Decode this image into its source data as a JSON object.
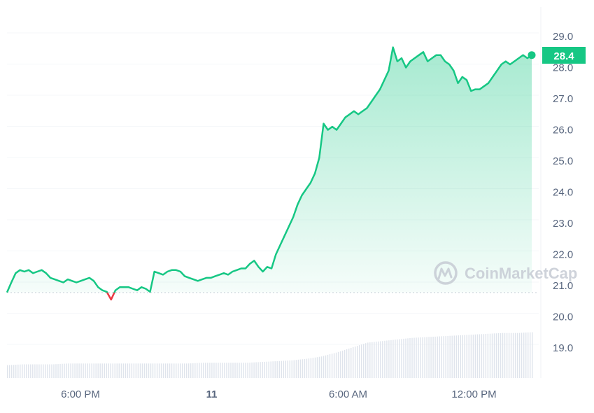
{
  "chart_data": {
    "type": "area",
    "title": "",
    "xlabel": "",
    "ylabel": "",
    "ylim": [
      18.2,
      29.4
    ],
    "y_ticks": [
      "29.0",
      "28.0",
      "27.0",
      "26.0",
      "25.0",
      "24.0",
      "23.0",
      "22.0",
      "21.0",
      "20.0",
      "19.0"
    ],
    "x_ticks": [
      {
        "label": "6:00 PM",
        "pos": 0.14,
        "bold": false
      },
      {
        "label": "11",
        "pos": 0.39,
        "bold": true
      },
      {
        "label": "6:00 AM",
        "pos": 0.65,
        "bold": false
      },
      {
        "label": "12:00 PM",
        "pos": 0.89,
        "bold": false
      }
    ],
    "baseline": 20.78,
    "current_price": "28.4",
    "series": [
      {
        "name": "Price",
        "values": [
          20.78,
          21.1,
          21.4,
          21.5,
          21.45,
          21.5,
          21.4,
          21.45,
          21.5,
          21.4,
          21.25,
          21.2,
          21.15,
          21.1,
          21.2,
          21.15,
          21.1,
          21.15,
          21.2,
          21.25,
          21.15,
          20.95,
          20.85,
          20.8,
          20.55,
          20.85,
          20.95,
          20.95,
          20.95,
          20.9,
          20.85,
          20.95,
          20.9,
          20.8,
          21.45,
          21.4,
          21.35,
          21.45,
          21.5,
          21.5,
          21.45,
          21.3,
          21.25,
          21.2,
          21.15,
          21.2,
          21.25,
          21.25,
          21.3,
          21.35,
          21.4,
          21.35,
          21.45,
          21.5,
          21.55,
          21.55,
          21.7,
          21.8,
          21.6,
          21.45,
          21.6,
          21.55,
          22.0,
          22.3,
          22.6,
          22.9,
          23.2,
          23.6,
          23.9,
          24.1,
          24.3,
          24.6,
          25.1,
          26.2,
          26.0,
          26.1,
          26.0,
          26.2,
          26.4,
          26.5,
          26.6,
          26.5,
          26.6,
          26.7,
          26.9,
          27.1,
          27.3,
          27.6,
          27.9,
          28.65,
          28.2,
          28.3,
          28.0,
          28.2,
          28.3,
          28.4,
          28.5,
          28.2,
          28.3,
          28.4,
          28.4,
          28.2,
          28.1,
          27.9,
          27.5,
          27.7,
          27.6,
          27.25,
          27.3,
          27.3,
          27.4,
          27.5,
          27.7,
          27.9,
          28.1,
          28.2,
          28.1,
          28.2,
          28.3,
          28.4,
          28.3,
          28.4
        ]
      },
      {
        "name": "Volume",
        "values": [
          0.16,
          0.17,
          0.17,
          0.17,
          0.18,
          0.18,
          0.18,
          0.18,
          0.18,
          0.18,
          0.18,
          0.18,
          0.18,
          0.19,
          0.19,
          0.19,
          0.19,
          0.2,
          0.21,
          0.22,
          0.24,
          0.27,
          0.32,
          0.38,
          0.44,
          0.46,
          0.48,
          0.5,
          0.51,
          0.52,
          0.53,
          0.54,
          0.55,
          0.56,
          0.56,
          0.57
        ]
      }
    ]
  },
  "watermark": "CoinMarketCap",
  "colors": {
    "line_up": "#16c784",
    "line_down": "#ea3943",
    "badge": "#16c784",
    "axis_text": "#58667e",
    "volume": "#dfe4ec",
    "grid": "#f3f5f8"
  }
}
